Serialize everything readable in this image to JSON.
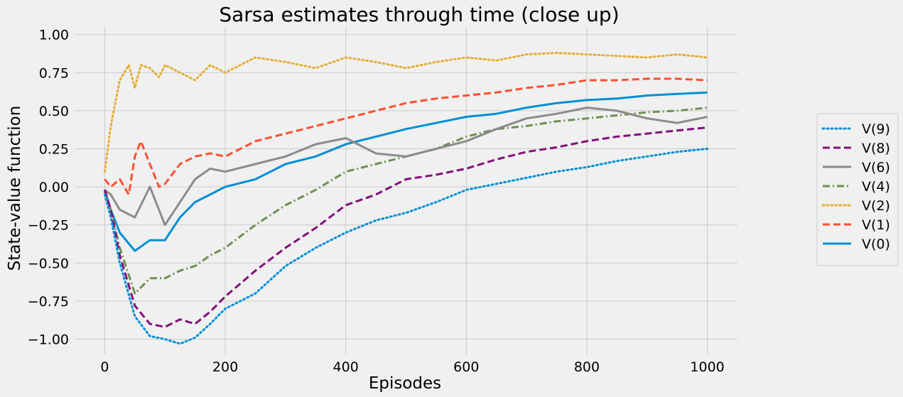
{
  "chart_data": {
    "type": "line",
    "title": "Sarsa estimates through time (close up)",
    "xlabel": "Episodes",
    "ylabel": "State-value function",
    "xlim": [
      -50,
      1050
    ],
    "ylim": [
      -1.1,
      1.05
    ],
    "xticks": [
      0,
      200,
      400,
      600,
      800,
      1000
    ],
    "xtick_labels": [
      "0",
      "200",
      "400",
      "600",
      "800",
      "1000"
    ],
    "yticks": [
      -1.0,
      -0.75,
      -0.5,
      -0.25,
      0.0,
      0.25,
      0.5,
      0.75,
      1.0
    ],
    "ytick_labels": [
      "−1.00",
      "−0.75",
      "−0.50",
      "−0.25",
      "0.00",
      "0.25",
      "0.50",
      "0.75",
      "1.00"
    ],
    "grid": true,
    "legend_position": "right-outside",
    "background": "#f0f0f0",
    "series": [
      {
        "name": "V(9)",
        "color": "#008fd5",
        "style": "dotted",
        "x": [
          0,
          10,
          25,
          50,
          75,
          100,
          125,
          150,
          175,
          200,
          250,
          300,
          350,
          400,
          450,
          500,
          550,
          600,
          650,
          700,
          750,
          800,
          850,
          900,
          950,
          1000
        ],
        "y": [
          -0.05,
          -0.2,
          -0.5,
          -0.85,
          -0.98,
          -1.0,
          -1.03,
          -0.99,
          -0.9,
          -0.8,
          -0.7,
          -0.52,
          -0.4,
          -0.3,
          -0.22,
          -0.17,
          -0.1,
          -0.02,
          0.02,
          0.06,
          0.1,
          0.13,
          0.17,
          0.2,
          0.23,
          0.25
        ]
      },
      {
        "name": "V(8)",
        "color": "#810f7c",
        "style": "dashed",
        "x": [
          0,
          10,
          25,
          50,
          75,
          100,
          125,
          150,
          175,
          200,
          250,
          300,
          350,
          400,
          450,
          500,
          550,
          600,
          650,
          700,
          750,
          800,
          850,
          900,
          950,
          1000
        ],
        "y": [
          -0.02,
          -0.15,
          -0.45,
          -0.78,
          -0.9,
          -0.92,
          -0.87,
          -0.9,
          -0.82,
          -0.72,
          -0.55,
          -0.4,
          -0.27,
          -0.12,
          -0.05,
          0.05,
          0.08,
          0.12,
          0.18,
          0.23,
          0.26,
          0.3,
          0.33,
          0.35,
          0.37,
          0.39
        ]
      },
      {
        "name": "V(6)",
        "color": "#8b8b8b",
        "style": "solid",
        "x": [
          0,
          10,
          25,
          50,
          75,
          100,
          125,
          150,
          175,
          200,
          250,
          300,
          350,
          400,
          450,
          500,
          550,
          600,
          650,
          700,
          750,
          800,
          850,
          900,
          950,
          1000
        ],
        "y": [
          -0.02,
          -0.05,
          -0.15,
          -0.2,
          0.0,
          -0.25,
          -0.1,
          0.05,
          0.12,
          0.1,
          0.15,
          0.2,
          0.28,
          0.32,
          0.22,
          0.2,
          0.25,
          0.3,
          0.38,
          0.45,
          0.48,
          0.52,
          0.5,
          0.45,
          0.42,
          0.46
        ]
      },
      {
        "name": "V(4)",
        "color": "#6d904f",
        "style": "dashdot",
        "x": [
          0,
          10,
          25,
          50,
          75,
          100,
          125,
          150,
          175,
          200,
          250,
          300,
          350,
          400,
          450,
          500,
          550,
          600,
          650,
          700,
          750,
          800,
          850,
          900,
          950,
          1000
        ],
        "y": [
          -0.03,
          -0.15,
          -0.4,
          -0.7,
          -0.6,
          -0.6,
          -0.55,
          -0.52,
          -0.45,
          -0.4,
          -0.25,
          -0.12,
          -0.02,
          0.1,
          0.15,
          0.2,
          0.25,
          0.33,
          0.38,
          0.4,
          0.43,
          0.45,
          0.47,
          0.49,
          0.5,
          0.52
        ]
      },
      {
        "name": "V(2)",
        "color": "#e5ae38",
        "style": "dotted",
        "x": [
          0,
          10,
          25,
          40,
          50,
          60,
          75,
          90,
          100,
          125,
          150,
          175,
          200,
          250,
          300,
          350,
          400,
          450,
          500,
          550,
          600,
          650,
          700,
          750,
          800,
          850,
          900,
          950,
          1000
        ],
        "y": [
          0.1,
          0.4,
          0.7,
          0.8,
          0.65,
          0.8,
          0.78,
          0.72,
          0.8,
          0.75,
          0.7,
          0.8,
          0.75,
          0.85,
          0.82,
          0.78,
          0.85,
          0.82,
          0.78,
          0.82,
          0.85,
          0.83,
          0.87,
          0.88,
          0.87,
          0.86,
          0.85,
          0.87,
          0.85
        ]
      },
      {
        "name": "V(1)",
        "color": "#fc4f30",
        "style": "dashed",
        "x": [
          0,
          10,
          25,
          40,
          50,
          60,
          75,
          90,
          100,
          125,
          150,
          175,
          200,
          250,
          300,
          350,
          400,
          450,
          500,
          550,
          600,
          650,
          700,
          750,
          800,
          850,
          900,
          950,
          1000
        ],
        "y": [
          0.05,
          0.0,
          0.05,
          -0.05,
          0.2,
          0.3,
          0.15,
          0.0,
          0.02,
          0.15,
          0.2,
          0.22,
          0.2,
          0.3,
          0.35,
          0.4,
          0.45,
          0.5,
          0.55,
          0.58,
          0.6,
          0.62,
          0.65,
          0.67,
          0.7,
          0.7,
          0.71,
          0.71,
          0.7
        ]
      },
      {
        "name": "V(0)",
        "color": "#008fd5",
        "style": "solid",
        "x": [
          0,
          10,
          25,
          50,
          75,
          100,
          125,
          150,
          175,
          200,
          250,
          300,
          350,
          400,
          450,
          500,
          550,
          600,
          650,
          700,
          750,
          800,
          850,
          900,
          950,
          1000
        ],
        "y": [
          -0.02,
          -0.15,
          -0.3,
          -0.42,
          -0.35,
          -0.35,
          -0.2,
          -0.1,
          -0.05,
          0.0,
          0.05,
          0.15,
          0.2,
          0.28,
          0.33,
          0.38,
          0.42,
          0.46,
          0.48,
          0.52,
          0.55,
          0.57,
          0.58,
          0.6,
          0.61,
          0.62
        ]
      }
    ]
  }
}
